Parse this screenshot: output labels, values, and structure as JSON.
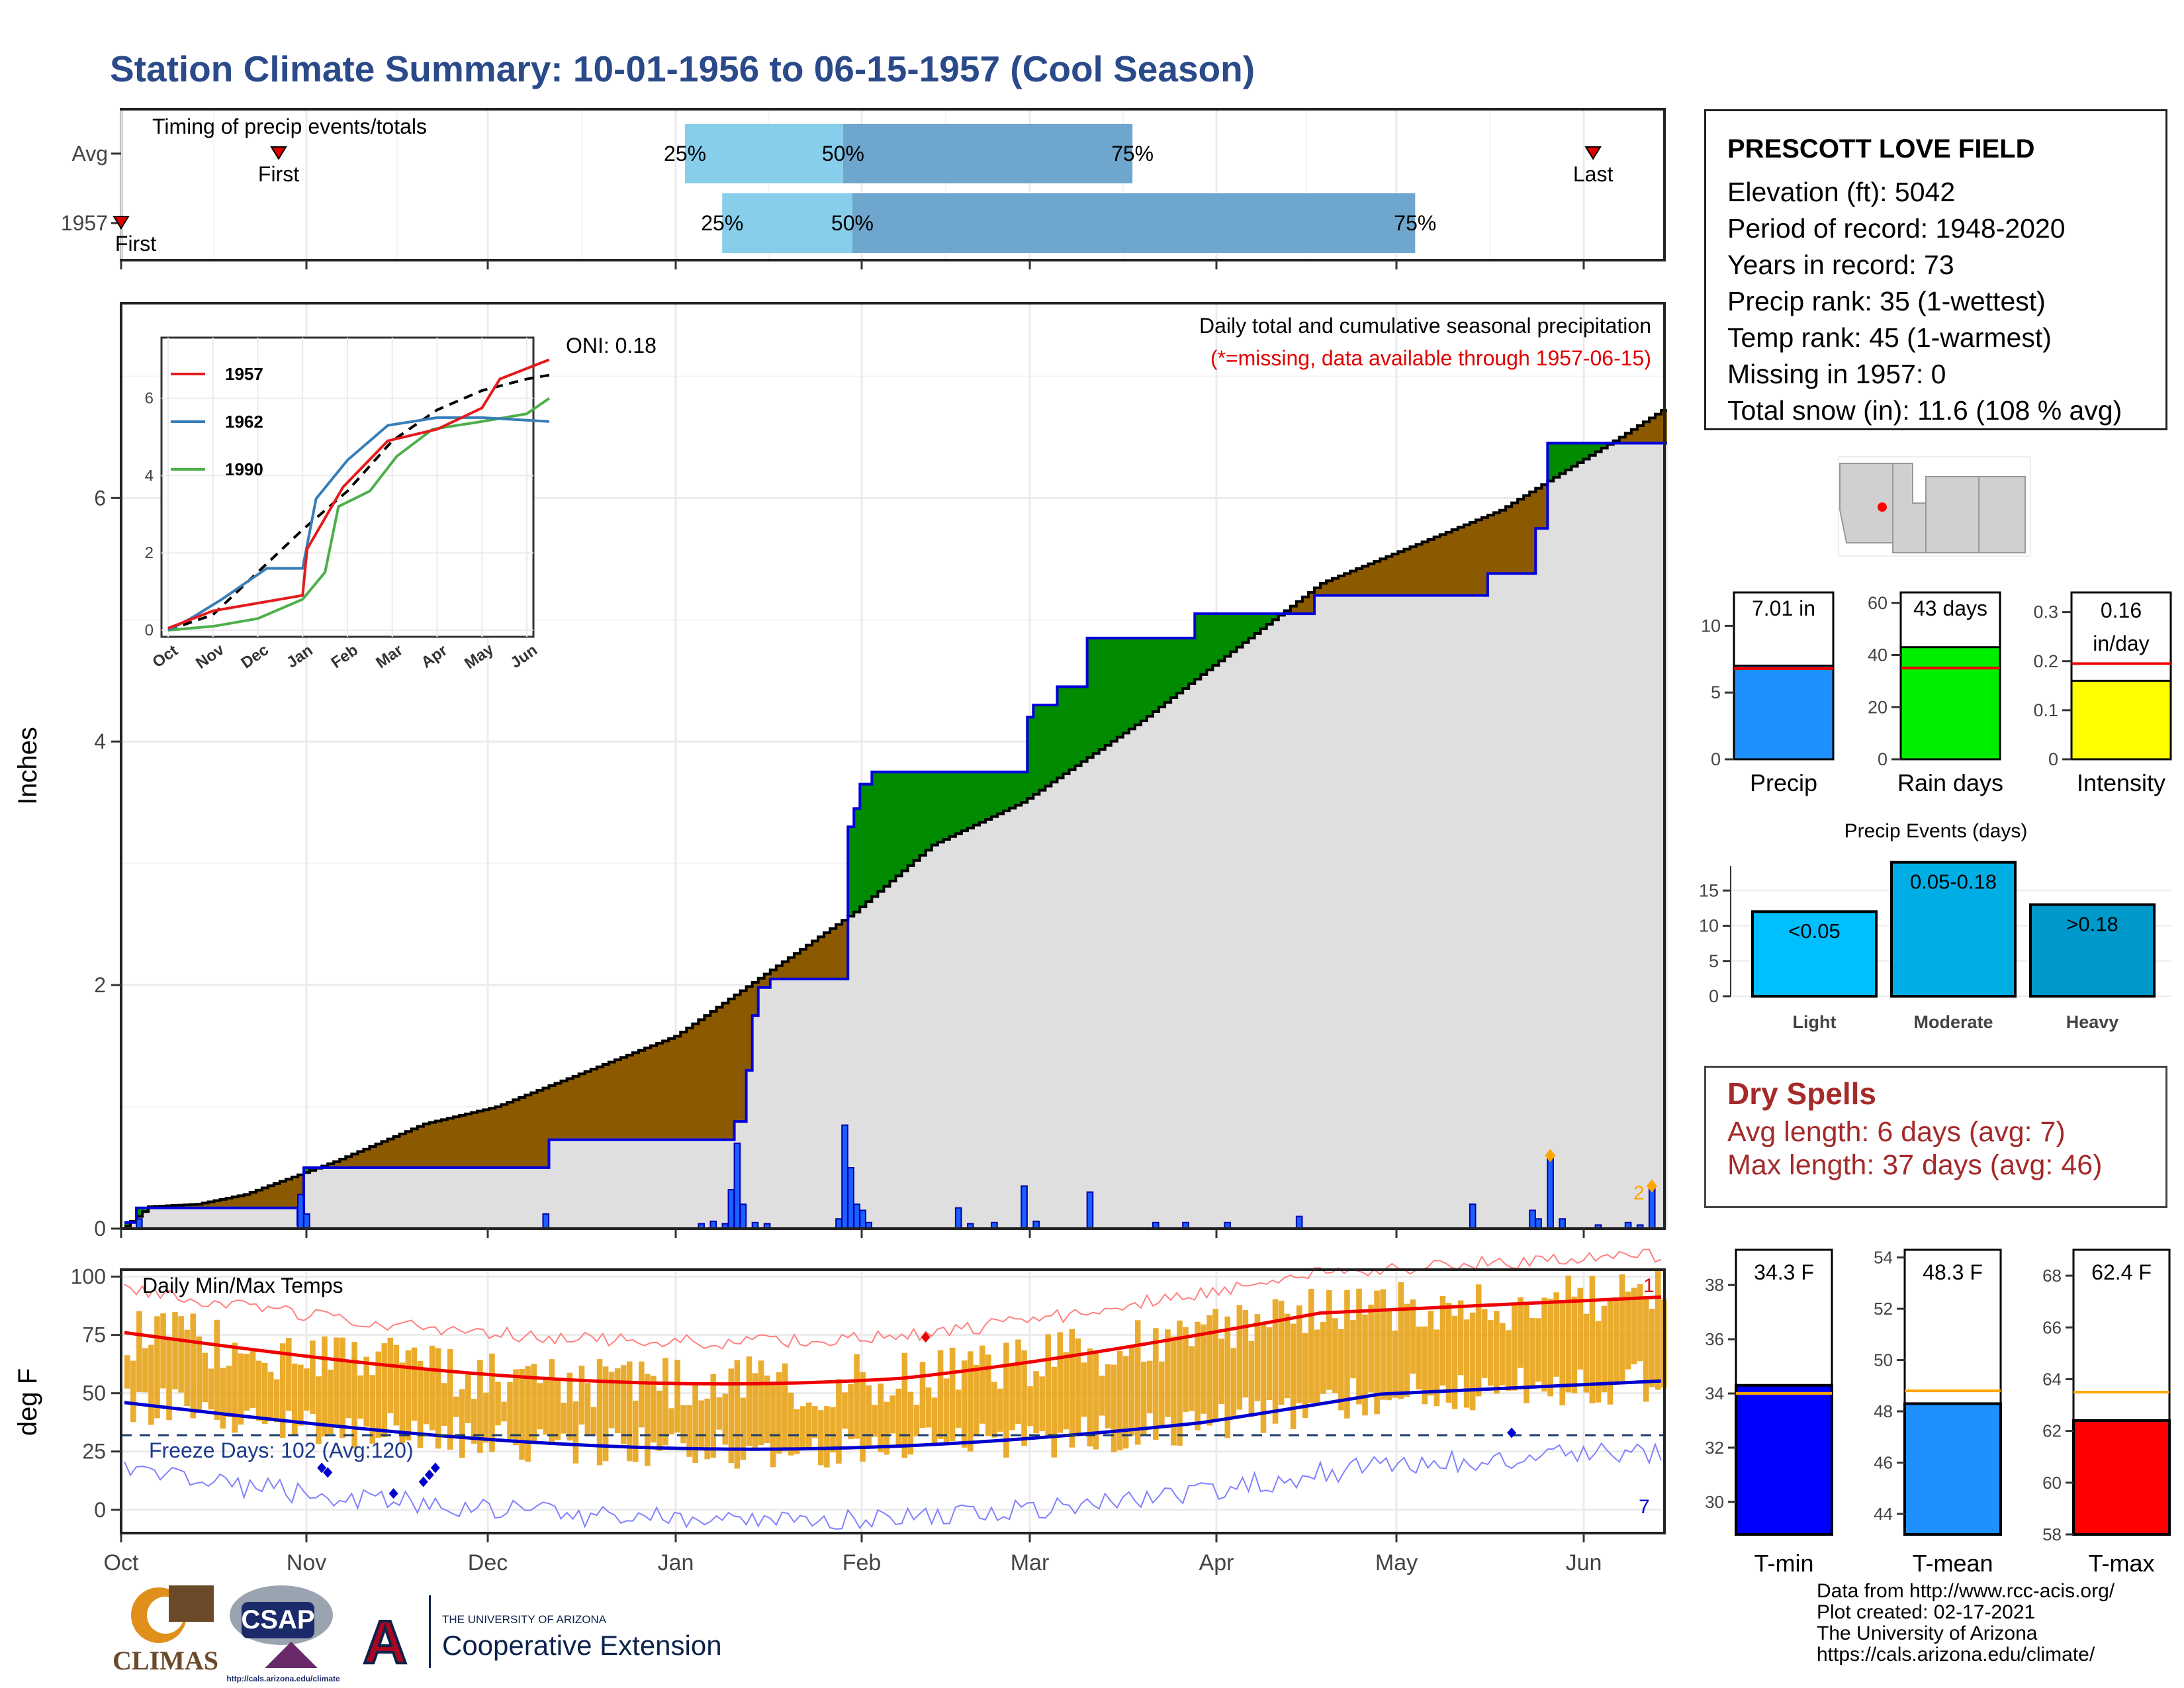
{
  "title": "Station Climate Summary: 10-01-1956 to 06-15-1957 (Cool Season)",
  "timing": {
    "label": "Timing of precip events/totals",
    "rows": [
      {
        "name": "Avg",
        "first_month": 0.85,
        "last_month": 8.05,
        "q25": 3.05,
        "q50": 3.9,
        "q75": 5.55,
        "first_label": "First",
        "last_label": "Last"
      },
      {
        "name": "1957",
        "first_month": 0.0,
        "last_month": 8.7,
        "q25": 3.25,
        "q50": 3.95,
        "q75": 7.1,
        "first_label": "First",
        "last_label": "Last"
      }
    ],
    "labels": {
      "q25": "25%",
      "q50": "50%",
      "q75": "75%"
    }
  },
  "station": {
    "name": "PRESCOTT LOVE FIELD",
    "lines": [
      "Elevation (ft): 5042",
      "Period of record: 1948-2020",
      "Years in record: 73",
      "Precip rank: 35 (1-wettest)",
      "Temp rank: 45 (1-warmest)",
      "Missing in 1957: 0",
      "Total snow (in): 11.6 (108 % avg)"
    ]
  },
  "precip_panel": {
    "ylabel": "Inches",
    "note": "Daily total and cumulative seasonal precipitation",
    "missing_note": "(*=missing, data available through 1957-06-15)",
    "oni": "ONI: 0.18",
    "yticks": [
      0,
      2,
      4,
      6
    ],
    "ylim": [
      0,
      7.6
    ],
    "marker_label": "2"
  },
  "inset": {
    "months": [
      "Oct",
      "Nov",
      "Dec",
      "Jan",
      "Feb",
      "Mar",
      "Apr",
      "May",
      "Jun"
    ],
    "yticks": [
      0,
      2,
      4,
      6
    ],
    "legend": [
      {
        "name": "1957",
        "color": "#e41a1c"
      },
      {
        "name": "1962",
        "color": "#377eb8"
      },
      {
        "name": "1990",
        "color": "#4daf4a"
      }
    ]
  },
  "temp_panel": {
    "ylabel": "deg F",
    "label": "Daily Min/Max Temps",
    "freeze": "Freeze Days: 102 (Avg:120)",
    "yticks": [
      0,
      25,
      50,
      75,
      100
    ],
    "ylim": [
      -10,
      103
    ],
    "freeze_line": 32,
    "count_high": "1",
    "count_low": "7"
  },
  "months": [
    "Oct",
    "Nov",
    "Dec",
    "Jan",
    "Feb",
    "Mar",
    "Apr",
    "May",
    "Jun"
  ],
  "summary_bars": [
    {
      "name": "Precip",
      "value": 7.01,
      "avg": 6.8,
      "label": "7.01 in",
      "color": "#1e90ff",
      "yticks": [
        0,
        5,
        10
      ],
      "ymax": 12.5
    },
    {
      "name": "Rain days",
      "value": 43,
      "avg": 35,
      "label": "43 days",
      "color": "#00ee00",
      "yticks": [
        0,
        20,
        40,
        60
      ],
      "ymax": 64
    },
    {
      "name": "Intensity",
      "value": 0.16,
      "avg": 0.195,
      "label": "0.16\nin/day",
      "label1": "0.16",
      "label2": "in/day",
      "color": "#ffff00",
      "yticks": [
        0.0,
        0.1,
        0.2,
        0.3
      ],
      "ymax": 0.34
    }
  ],
  "events": {
    "title": "Precip Events (days)",
    "yticks": [
      0,
      5,
      10,
      15
    ],
    "ymax": 18.5,
    "bars": [
      {
        "name": "Light",
        "value": 12,
        "label": "<0.05",
        "color": "#00bfff"
      },
      {
        "name": "Moderate",
        "value": 19,
        "label": "0.05-0.18",
        "color": "#00aee6"
      },
      {
        "name": "Heavy",
        "value": 13,
        "label": ">0.18",
        "color": "#0099cc"
      }
    ]
  },
  "dry_spells": {
    "title": "Dry Spells",
    "avg": "Avg length: 6 days (avg: 7)",
    "max": "Max length: 37 days (avg: 46)"
  },
  "temp_bars": [
    {
      "name": "T-min",
      "value": 34.3,
      "avg": 34.0,
      "label": "34.3 F",
      "color": "#0000ff",
      "yticks": [
        30,
        32,
        34,
        36,
        38
      ],
      "ymin": 28.8,
      "ymax": 39.3
    },
    {
      "name": "T-mean",
      "value": 48.3,
      "avg": 48.8,
      "label": "48.3 F",
      "color": "#1e90ff",
      "yticks": [
        44,
        46,
        48,
        50,
        52,
        54
      ],
      "ymin": 43.2,
      "ymax": 54.3
    },
    {
      "name": "T-max",
      "value": 62.4,
      "avg": 63.5,
      "label": "62.4 F",
      "color": "#ff0000",
      "yticks": [
        58,
        60,
        62,
        64,
        66,
        68
      ],
      "ymin": 58,
      "ymax": 69
    }
  ],
  "credits": [
    "Data from http://www.rcc-acis.org/",
    "Plot created: 02-17-2021",
    "The University of Arizona",
    "https://cals.arizona.edu/climate/"
  ],
  "logos": {
    "climas": "CLIMAS",
    "csap": "CSAP",
    "csap_url": "http://cals.arizona.edu/climate",
    "ua_small": "THE UNIVERSITY OF ARIZONA",
    "ua_big": "Cooperative Extension",
    "ua_letter": "A"
  },
  "chart_data": [
    {
      "type": "area",
      "title": "Daily total and cumulative seasonal precipitation",
      "ylabel": "Inches",
      "x": [
        "Oct",
        "Nov",
        "Dec",
        "Jan",
        "Feb",
        "Mar",
        "Apr",
        "May",
        "Jun"
      ],
      "series": [
        {
          "name": "1957",
          "values": [
            0.0,
            0.88,
            1.5,
            2.6,
            3.6,
            4.9,
            5.9,
            6.3,
            6.8
          ]
        }
      ]
    },
    {
      "type": "bar",
      "title": "Precip Events (days)",
      "categories": [
        "Light",
        "Moderate",
        "Heavy"
      ],
      "values": [
        12,
        19,
        13
      ]
    },
    {
      "type": "bar",
      "categories": [
        "Precip",
        "Rain days",
        "Intensity"
      ],
      "values": [
        7.01,
        43,
        0.16
      ]
    },
    {
      "type": "bar",
      "categories": [
        "T-min",
        "T-mean",
        "T-max"
      ],
      "values": [
        34.3,
        48.3,
        62.4
      ]
    }
  ]
}
